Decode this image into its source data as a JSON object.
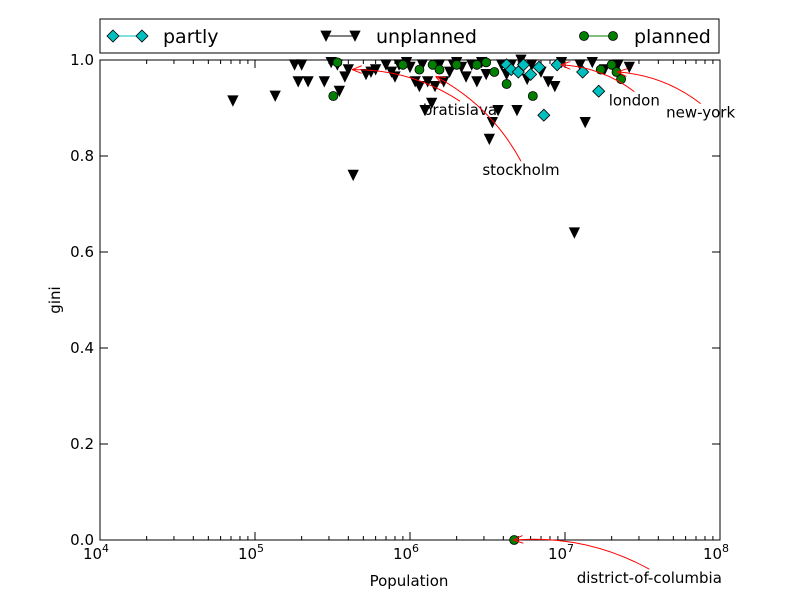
{
  "chart_data": {
    "type": "scatter",
    "xscale": "log",
    "xlim": [
      10000,
      100000000
    ],
    "ylim": [
      0.0,
      1.0
    ],
    "xlabel": "Population",
    "ylabel": "gini",
    "xticks": [
      {
        "value": 10000,
        "base": "10",
        "exp": "4"
      },
      {
        "value": 100000,
        "base": "10",
        "exp": "5"
      },
      {
        "value": 1000000,
        "base": "10",
        "exp": "6"
      },
      {
        "value": 10000000,
        "base": "10",
        "exp": "7"
      },
      {
        "value": 100000000,
        "base": "10",
        "exp": "8"
      }
    ],
    "yticks": [
      {
        "value": 0.0,
        "label": "0.0"
      },
      {
        "value": 0.2,
        "label": "0.2"
      },
      {
        "value": 0.4,
        "label": "0.4"
      },
      {
        "value": 0.6,
        "label": "0.6"
      },
      {
        "value": 0.8,
        "label": "0.8"
      },
      {
        "value": 1.0,
        "label": "1.0"
      }
    ],
    "legend_position": "top, above plot",
    "series": [
      {
        "name": "partly",
        "marker": "diamond",
        "color": "#00bfbf",
        "points": [
          [
            4200000,
            0.99
          ],
          [
            4500000,
            0.98
          ],
          [
            5000000,
            0.975
          ],
          [
            5400000,
            0.99
          ],
          [
            6000000,
            0.97
          ],
          [
            6800000,
            0.985
          ],
          [
            7300000,
            0.885
          ],
          [
            8900000,
            0.99
          ],
          [
            13000000,
            0.975
          ],
          [
            16500000,
            0.935
          ]
        ]
      },
      {
        "name": "unplanned",
        "marker": "triangle-down",
        "color": "#000000",
        "points": [
          [
            72000,
            0.915
          ],
          [
            135000,
            0.925
          ],
          [
            180000,
            0.99
          ],
          [
            190000,
            0.955
          ],
          [
            200000,
            0.99
          ],
          [
            220000,
            0.955
          ],
          [
            280000,
            0.955
          ],
          [
            310000,
            0.995
          ],
          [
            340000,
            0.99
          ],
          [
            350000,
            0.935
          ],
          [
            380000,
            0.965
          ],
          [
            400000,
            0.98
          ],
          [
            430000,
            0.76
          ],
          [
            520000,
            0.97
          ],
          [
            560000,
            0.975
          ],
          [
            600000,
            0.98
          ],
          [
            700000,
            0.99
          ],
          [
            760000,
            0.975
          ],
          [
            800000,
            0.965
          ],
          [
            850000,
            0.99
          ],
          [
            950000,
            0.995
          ],
          [
            1000000,
            0.985
          ],
          [
            1080000,
            0.955
          ],
          [
            1150000,
            0.945
          ],
          [
            1200000,
            0.99
          ],
          [
            1250000,
            0.895
          ],
          [
            1300000,
            0.955
          ],
          [
            1380000,
            0.91
          ],
          [
            1450000,
            0.945
          ],
          [
            1550000,
            0.99
          ],
          [
            1650000,
            0.955
          ],
          [
            1800000,
            0.975
          ],
          [
            1900000,
            0.99
          ],
          [
            2000000,
            0.995
          ],
          [
            2150000,
            0.985
          ],
          [
            2300000,
            0.965
          ],
          [
            2500000,
            0.99
          ],
          [
            2700000,
            0.955
          ],
          [
            2900000,
            0.995
          ],
          [
            3100000,
            0.97
          ],
          [
            3250000,
            0.835
          ],
          [
            3400000,
            0.87
          ],
          [
            3700000,
            0.895
          ],
          [
            3900000,
            0.99
          ],
          [
            4200000,
            0.97
          ],
          [
            4500000,
            0.99
          ],
          [
            4900000,
            0.895
          ],
          [
            5200000,
            1.0
          ],
          [
            5700000,
            0.96
          ],
          [
            6100000,
            0.99
          ],
          [
            7000000,
            0.975
          ],
          [
            7800000,
            0.955
          ],
          [
            8600000,
            0.945
          ],
          [
            9500000,
            0.995
          ],
          [
            11500000,
            0.64
          ],
          [
            12500000,
            0.99
          ],
          [
            13500000,
            0.87
          ],
          [
            15000000,
            0.995
          ],
          [
            18000000,
            0.98
          ],
          [
            22000000,
            0.99
          ],
          [
            26000000,
            0.985
          ]
        ]
      },
      {
        "name": "planned",
        "marker": "circle",
        "color": "#007f00",
        "points": [
          [
            320000,
            0.925
          ],
          [
            340000,
            0.995
          ],
          [
            900000,
            0.99
          ],
          [
            1150000,
            0.98
          ],
          [
            1400000,
            0.99
          ],
          [
            1550000,
            0.98
          ],
          [
            2000000,
            0.99
          ],
          [
            2700000,
            0.99
          ],
          [
            3100000,
            0.995
          ],
          [
            3500000,
            0.975
          ],
          [
            4200000,
            0.95
          ],
          [
            4700000,
            0.0
          ],
          [
            6200000,
            0.925
          ],
          [
            17000000,
            0.98
          ],
          [
            20000000,
            0.99
          ],
          [
            21500000,
            0.975
          ],
          [
            23000000,
            0.96
          ]
        ]
      }
    ],
    "annotations": [
      {
        "text": "bratislava",
        "point": [
          430000,
          0.98
        ],
        "text_at": [
          2100000,
          0.885
        ],
        "anchor": "middle"
      },
      {
        "text": "stockholm",
        "point": [
          1480000,
          0.965
        ],
        "text_at": [
          5200000,
          0.76
        ],
        "anchor": "middle"
      },
      {
        "text": "london",
        "point": [
          9500000,
          0.99
        ],
        "text_at": [
          28000000,
          0.905
        ],
        "anchor": "middle"
      },
      {
        "text": "new-york",
        "point": [
          22000000,
          0.975
        ],
        "text_at": [
          75000000,
          0.88
        ],
        "anchor": "middle"
      },
      {
        "text": "district-of-columbia",
        "point": [
          4700000,
          0.0
        ],
        "text_at": [
          35000000,
          -0.09
        ],
        "anchor": "middle"
      }
    ],
    "annotation_arrow_color": "#ff0000"
  }
}
